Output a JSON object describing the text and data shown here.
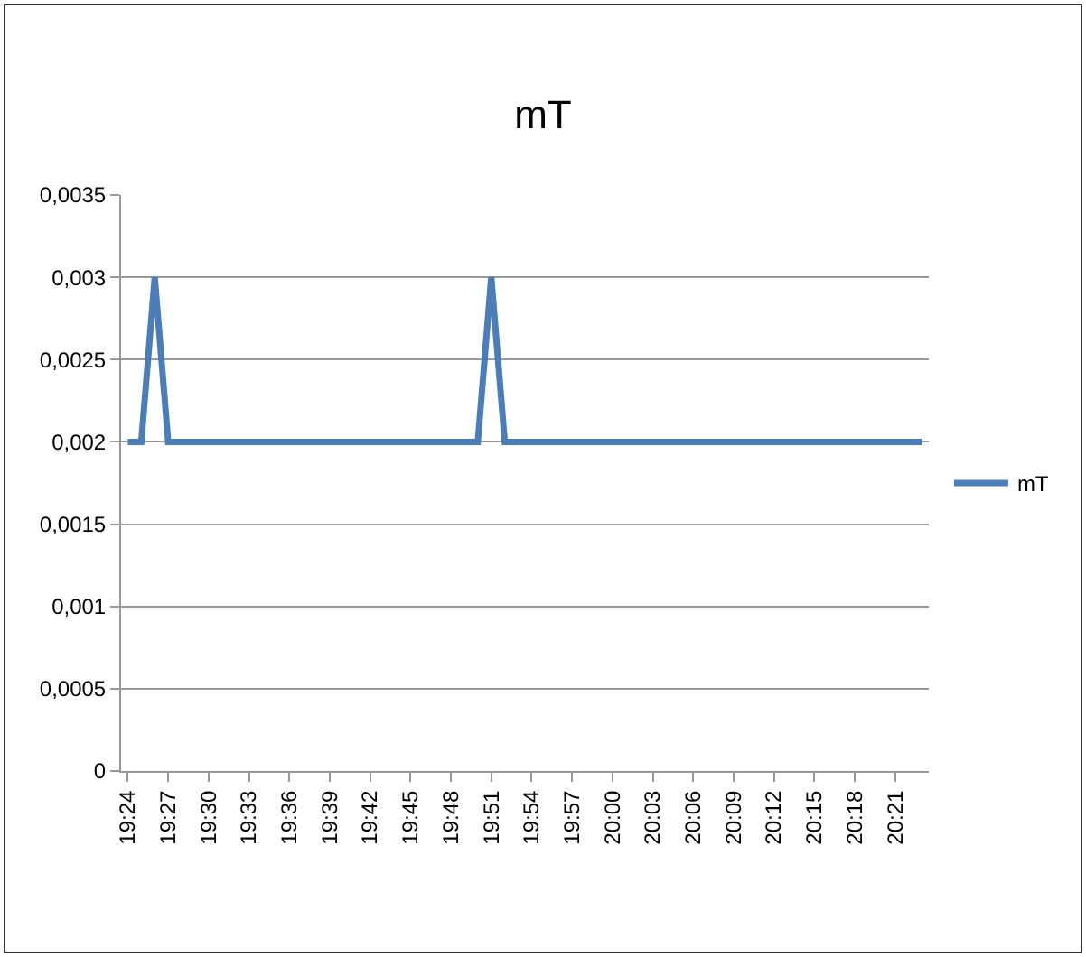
{
  "chart_data": {
    "type": "line",
    "title": "mT",
    "categories": [
      "19:24",
      null,
      null,
      "19:27",
      null,
      null,
      "19:30",
      null,
      null,
      "19:33",
      null,
      null,
      "19:36",
      null,
      null,
      "19:39",
      null,
      null,
      "19:42",
      null,
      null,
      "19:45",
      null,
      null,
      "19:48",
      null,
      null,
      "19:51",
      null,
      null,
      "19:54",
      null,
      null,
      "19:57",
      null,
      null,
      "20:00",
      null,
      null,
      "20:03",
      null,
      null,
      "20:06",
      null,
      null,
      "20:09",
      null,
      null,
      "20:12",
      null,
      null,
      "20:15",
      null,
      null,
      "20:18",
      null,
      null,
      "20:21",
      null,
      null
    ],
    "series": [
      {
        "name": "mT",
        "color": "#4a7ebb",
        "values": [
          0.002,
          0.002,
          0.003,
          0.002,
          0.002,
          0.002,
          0.002,
          0.002,
          0.002,
          0.002,
          0.002,
          0.002,
          0.002,
          0.002,
          0.002,
          0.002,
          0.002,
          0.002,
          0.002,
          0.002,
          0.002,
          0.002,
          0.002,
          0.002,
          0.002,
          0.002,
          0.002,
          0.003,
          0.002,
          0.002,
          0.002,
          0.002,
          0.002,
          0.002,
          0.002,
          0.002,
          0.002,
          0.002,
          0.002,
          0.002,
          0.002,
          0.002,
          0.002,
          0.002,
          0.002,
          0.002,
          0.002,
          0.002,
          0.002,
          0.002,
          0.002,
          0.002,
          0.002,
          0.002,
          0.002,
          0.002,
          0.002,
          0.002,
          0.002,
          0.002
        ]
      }
    ],
    "ylim": [
      0,
      0.0035
    ],
    "yticks": [
      0,
      {
        "value": 0.0005,
        "label": "0,0005"
      },
      {
        "value": 0.001,
        "label": "0,001"
      },
      {
        "value": 0.0015,
        "label": "0,0015"
      },
      {
        "value": 0.002,
        "label": "0,002"
      },
      {
        "value": 0.0025,
        "label": "0,0025"
      },
      {
        "value": 0.003,
        "label": "0,003"
      },
      {
        "value": 0.0035,
        "label": "0,0035"
      }
    ],
    "grid": "y",
    "legend": "right",
    "marker": "none",
    "line_style": "solid"
  }
}
